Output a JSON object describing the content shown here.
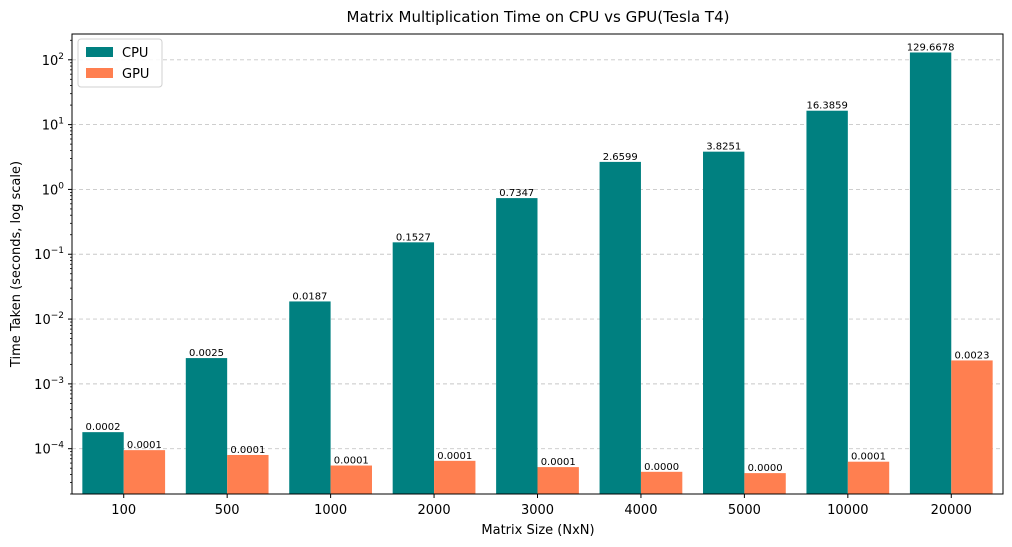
{
  "chart_data": {
    "type": "bar",
    "title": "Matrix Multiplication Time on CPU vs GPU(Tesla T4)",
    "xlabel": "Matrix Size (NxN)",
    "ylabel": "Time Taken (seconds, log scale)",
    "yscale": "log",
    "ylim": [
      2e-05,
      250
    ],
    "yticks": [
      {
        "value": 0.0001,
        "label_base": "10",
        "label_exp": "−4"
      },
      {
        "value": 0.001,
        "label_base": "10",
        "label_exp": "−3"
      },
      {
        "value": 0.01,
        "label_base": "10",
        "label_exp": "−2"
      },
      {
        "value": 0.1,
        "label_base": "10",
        "label_exp": "−1"
      },
      {
        "value": 1,
        "label_base": "10",
        "label_exp": "0"
      },
      {
        "value": 10,
        "label_base": "10",
        "label_exp": "1"
      },
      {
        "value": 100,
        "label_base": "10",
        "label_exp": "2"
      }
    ],
    "grid": "y-dashed",
    "legend_position": "top-left",
    "categories": [
      "100",
      "500",
      "1000",
      "2000",
      "3000",
      "4000",
      "5000",
      "10000",
      "20000"
    ],
    "series": [
      {
        "name": "CPU",
        "color": "#008080",
        "values": [
          0.00018,
          0.0025,
          0.0187,
          0.1527,
          0.7347,
          2.6599,
          3.8251,
          16.3859,
          129.6678
        ],
        "labels": [
          "0.0002",
          "0.0025",
          "0.0187",
          "0.1527",
          "0.7347",
          "2.6599",
          "3.8251",
          "16.3859",
          "129.6678"
        ]
      },
      {
        "name": "GPU",
        "color": "#FF7F50",
        "values": [
          9.5e-05,
          8e-05,
          5.5e-05,
          6.5e-05,
          5.2e-05,
          4.4e-05,
          4.2e-05,
          6.3e-05,
          0.0023
        ],
        "labels": [
          "0.0001",
          "0.0001",
          "0.0001",
          "0.0001",
          "0.0001",
          "0.0000",
          "0.0000",
          "0.0001",
          "0.0023"
        ]
      }
    ]
  }
}
